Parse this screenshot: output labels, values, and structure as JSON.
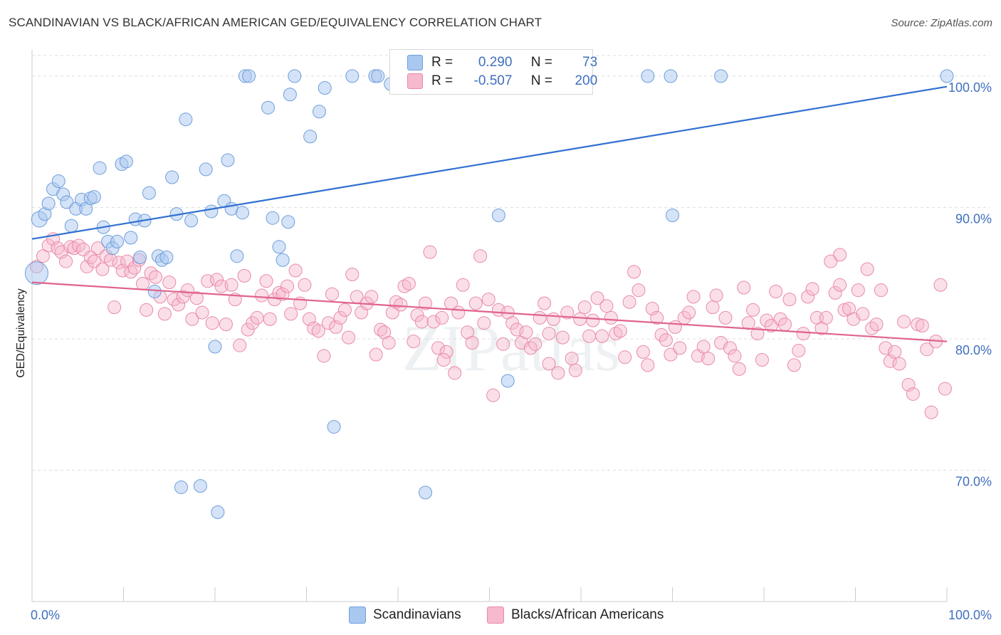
{
  "title": "SCANDINAVIAN VS BLACK/AFRICAN AMERICAN GED/EQUIVALENCY CORRELATION CHART",
  "source": "Source: ZipAtlas.com",
  "watermark": "ZIPatlas",
  "legend_top": {
    "rows": [
      {
        "r_label": "R =",
        "r_value": "0.290",
        "n_label": "N =",
        "n_value": "73"
      },
      {
        "r_label": "R =",
        "r_value": "-0.507",
        "n_label": "N =",
        "n_value": "200"
      }
    ]
  },
  "colors": {
    "blue_fill": "#a9c8f0",
    "blue_stroke": "#6f9edc",
    "blue_line": "#2f6fd0",
    "pink_fill": "#f7b9cc",
    "pink_stroke": "#e98aa8",
    "pink_line": "#e0638c",
    "grid": "#dddddd",
    "axis_text": "#3f6fbf"
  },
  "chart_data": {
    "type": "scatter",
    "title": "SCANDINAVIAN VS BLACK/AFRICAN AMERICAN GED/EQUIVALENCY CORRELATION CHART",
    "xlabel": "",
    "ylabel": "GED/Equivalency",
    "xlim": [
      0,
      100
    ],
    "ylim": [
      60,
      102
    ],
    "x_tick_labels": [
      "0.0%",
      "100.0%"
    ],
    "y_ticks": [
      {
        "value": 100,
        "label": "100.0%"
      },
      {
        "value": 90,
        "label": "90.0%"
      },
      {
        "value": 80,
        "label": "80.0%"
      },
      {
        "value": 70,
        "label": "70.0%"
      }
    ],
    "legend": [
      "Scandinavians",
      "Blacks/African Americans"
    ],
    "series": [
      {
        "name": "Scandinavians",
        "trend": {
          "x": [
            0,
            100
          ],
          "y": [
            87.6,
            99.2
          ]
        },
        "points": [
          [
            0.5,
            85.0
          ],
          [
            0.8,
            89.1
          ],
          [
            1.4,
            89.5
          ],
          [
            1.8,
            90.3
          ],
          [
            2.3,
            91.4
          ],
          [
            2.9,
            92.0
          ],
          [
            3.4,
            91.0
          ],
          [
            3.8,
            90.4
          ],
          [
            4.3,
            88.6
          ],
          [
            4.8,
            89.9
          ],
          [
            5.4,
            90.6
          ],
          [
            5.9,
            89.9
          ],
          [
            6.4,
            90.7
          ],
          [
            6.8,
            90.8
          ],
          [
            7.4,
            93.0
          ],
          [
            7.8,
            88.5
          ],
          [
            8.3,
            87.4
          ],
          [
            8.8,
            86.9
          ],
          [
            9.3,
            87.4
          ],
          [
            9.8,
            93.3
          ],
          [
            10.3,
            93.5
          ],
          [
            10.8,
            87.7
          ],
          [
            11.3,
            89.1
          ],
          [
            11.8,
            86.2
          ],
          [
            12.3,
            89.0
          ],
          [
            12.8,
            91.1
          ],
          [
            13.4,
            83.6
          ],
          [
            13.8,
            86.3
          ],
          [
            14.2,
            86.0
          ],
          [
            14.7,
            86.2
          ],
          [
            15.3,
            92.3
          ],
          [
            15.8,
            89.5
          ],
          [
            16.3,
            68.7
          ],
          [
            16.8,
            96.7
          ],
          [
            17.4,
            89.0
          ],
          [
            18.4,
            68.8
          ],
          [
            19.0,
            92.9
          ],
          [
            19.6,
            89.7
          ],
          [
            20.0,
            79.4
          ],
          [
            20.3,
            66.8
          ],
          [
            21.0,
            90.5
          ],
          [
            21.4,
            93.6
          ],
          [
            21.8,
            89.9
          ],
          [
            22.4,
            86.3
          ],
          [
            23.0,
            89.6
          ],
          [
            23.3,
            100.0
          ],
          [
            23.7,
            100.0
          ],
          [
            25.8,
            97.6
          ],
          [
            26.3,
            89.2
          ],
          [
            27.0,
            87.0
          ],
          [
            27.4,
            86.0
          ],
          [
            28.0,
            88.9
          ],
          [
            28.2,
            98.6
          ],
          [
            28.7,
            100.0
          ],
          [
            30.4,
            95.4
          ],
          [
            31.4,
            97.3
          ],
          [
            32.0,
            99.1
          ],
          [
            33.0,
            73.3
          ],
          [
            35.0,
            100.0
          ],
          [
            37.5,
            100.0
          ],
          [
            37.8,
            100.0
          ],
          [
            39.2,
            99.4
          ],
          [
            43.0,
            68.3
          ],
          [
            46.5,
            100.0
          ],
          [
            51.0,
            89.4
          ],
          [
            52.0,
            76.8
          ],
          [
            67.3,
            100.0
          ],
          [
            69.8,
            100.0
          ],
          [
            70.0,
            89.4
          ],
          [
            75.3,
            100.0
          ],
          [
            100.0,
            100.0
          ]
        ]
      },
      {
        "name": "Blacks/African Americans",
        "trend": {
          "x": [
            0,
            100
          ],
          "y": [
            84.3,
            79.8
          ]
        },
        "points": [
          [
            0.5,
            85.5
          ],
          [
            1.2,
            86.3
          ],
          [
            1.8,
            87.1
          ],
          [
            2.3,
            87.6
          ],
          [
            2.8,
            86.9
          ],
          [
            3.2,
            86.6
          ],
          [
            3.7,
            85.9
          ],
          [
            4.2,
            87.0
          ],
          [
            4.6,
            86.9
          ],
          [
            5.1,
            87.1
          ],
          [
            5.6,
            86.8
          ],
          [
            6.0,
            85.5
          ],
          [
            6.4,
            86.2
          ],
          [
            6.8,
            85.9
          ],
          [
            7.2,
            86.9
          ],
          [
            7.7,
            85.3
          ],
          [
            8.1,
            86.3
          ],
          [
            8.6,
            86.0
          ],
          [
            9.0,
            82.4
          ],
          [
            9.5,
            85.8
          ],
          [
            9.9,
            85.2
          ],
          [
            10.4,
            85.9
          ],
          [
            10.8,
            85.1
          ],
          [
            11.2,
            85.4
          ],
          [
            11.7,
            86.0
          ],
          [
            12.1,
            84.2
          ],
          [
            12.5,
            82.2
          ],
          [
            13.0,
            85.0
          ],
          [
            13.5,
            84.7
          ],
          [
            14.0,
            83.2
          ],
          [
            14.5,
            81.9
          ],
          [
            15.0,
            84.3
          ],
          [
            15.5,
            83.0
          ],
          [
            16.0,
            82.6
          ],
          [
            16.5,
            83.2
          ],
          [
            17.0,
            83.7
          ],
          [
            17.5,
            81.5
          ],
          [
            18.0,
            83.1
          ],
          [
            18.6,
            82.0
          ],
          [
            19.2,
            84.4
          ],
          [
            19.7,
            81.2
          ],
          [
            20.2,
            84.5
          ],
          [
            20.7,
            84.0
          ],
          [
            21.2,
            81.1
          ],
          [
            21.8,
            84.1
          ],
          [
            22.2,
            83.0
          ],
          [
            22.7,
            79.5
          ],
          [
            23.2,
            84.8
          ],
          [
            23.6,
            80.7
          ],
          [
            24.1,
            81.2
          ],
          [
            24.6,
            81.6
          ],
          [
            25.1,
            83.3
          ],
          [
            25.6,
            84.4
          ],
          [
            26.0,
            81.5
          ],
          [
            26.5,
            83.0
          ],
          [
            27.0,
            83.5
          ],
          [
            27.4,
            83.4
          ],
          [
            27.9,
            84.0
          ],
          [
            28.3,
            81.9
          ],
          [
            28.8,
            85.2
          ],
          [
            29.3,
            82.7
          ],
          [
            29.8,
            84.1
          ],
          [
            30.3,
            81.5
          ],
          [
            30.8,
            80.8
          ],
          [
            31.3,
            80.6
          ],
          [
            31.9,
            78.7
          ],
          [
            32.4,
            81.2
          ],
          [
            32.8,
            83.4
          ],
          [
            33.2,
            80.9
          ],
          [
            33.7,
            81.6
          ],
          [
            34.2,
            82.2
          ],
          [
            34.6,
            80.1
          ],
          [
            35.0,
            84.9
          ],
          [
            35.5,
            83.2
          ],
          [
            36.0,
            82.0
          ],
          [
            36.6,
            82.7
          ],
          [
            37.1,
            83.2
          ],
          [
            37.6,
            78.8
          ],
          [
            38.1,
            80.7
          ],
          [
            38.5,
            80.5
          ],
          [
            39.0,
            79.7
          ],
          [
            39.4,
            82.0
          ],
          [
            39.8,
            82.8
          ],
          [
            40.3,
            82.6
          ],
          [
            40.7,
            84.0
          ],
          [
            41.2,
            84.2
          ],
          [
            41.7,
            79.8
          ],
          [
            42.1,
            81.8
          ],
          [
            42.6,
            81.3
          ],
          [
            43.0,
            82.7
          ],
          [
            43.5,
            86.6
          ],
          [
            43.9,
            81.3
          ],
          [
            44.4,
            79.3
          ],
          [
            44.8,
            81.6
          ],
          [
            45.3,
            79.0
          ],
          [
            45.8,
            82.7
          ],
          [
            46.2,
            77.4
          ],
          [
            46.6,
            82.0
          ],
          [
            47.1,
            84.1
          ],
          [
            47.6,
            80.5
          ],
          [
            48.1,
            79.7
          ],
          [
            48.5,
            82.7
          ],
          [
            49.0,
            86.3
          ],
          [
            49.4,
            81.2
          ],
          [
            49.9,
            83.0
          ],
          [
            50.4,
            75.7
          ],
          [
            51.0,
            82.2
          ],
          [
            51.5,
            79.6
          ],
          [
            52.0,
            82.0
          ],
          [
            52.5,
            81.2
          ],
          [
            53.0,
            80.7
          ],
          [
            53.5,
            79.7
          ],
          [
            54.0,
            80.5
          ],
          [
            54.5,
            79.3
          ],
          [
            55.0,
            79.6
          ],
          [
            55.5,
            81.6
          ],
          [
            56.0,
            82.7
          ],
          [
            56.5,
            80.4
          ],
          [
            57.0,
            81.5
          ],
          [
            57.5,
            77.4
          ],
          [
            58.0,
            80.1
          ],
          [
            58.5,
            82.0
          ],
          [
            59.0,
            78.5
          ],
          [
            59.4,
            77.6
          ],
          [
            59.9,
            81.5
          ],
          [
            60.4,
            82.4
          ],
          [
            60.9,
            80.2
          ],
          [
            61.3,
            81.4
          ],
          [
            61.8,
            83.1
          ],
          [
            62.3,
            80.2
          ],
          [
            62.8,
            82.5
          ],
          [
            63.3,
            81.6
          ],
          [
            63.8,
            80.4
          ],
          [
            64.3,
            80.6
          ],
          [
            64.8,
            78.6
          ],
          [
            65.3,
            82.8
          ],
          [
            65.8,
            85.1
          ],
          [
            66.3,
            83.7
          ],
          [
            66.8,
            79.0
          ],
          [
            67.3,
            78.0
          ],
          [
            67.8,
            82.3
          ],
          [
            68.3,
            81.6
          ],
          [
            68.8,
            80.3
          ],
          [
            69.3,
            79.9
          ],
          [
            69.8,
            78.8
          ],
          [
            70.3,
            80.9
          ],
          [
            70.8,
            79.3
          ],
          [
            71.3,
            81.6
          ],
          [
            71.8,
            82.0
          ],
          [
            72.3,
            83.2
          ],
          [
            72.8,
            78.7
          ],
          [
            73.4,
            79.4
          ],
          [
            73.9,
            78.5
          ],
          [
            74.4,
            82.4
          ],
          [
            74.8,
            83.3
          ],
          [
            75.3,
            79.7
          ],
          [
            75.8,
            81.6
          ],
          [
            76.3,
            79.3
          ],
          [
            76.8,
            78.7
          ],
          [
            77.3,
            77.7
          ],
          [
            77.8,
            83.9
          ],
          [
            78.3,
            81.2
          ],
          [
            78.8,
            82.2
          ],
          [
            79.3,
            80.4
          ],
          [
            79.8,
            78.4
          ],
          [
            80.3,
            81.4
          ],
          [
            80.8,
            81.0
          ],
          [
            81.3,
            83.6
          ],
          [
            81.8,
            81.5
          ],
          [
            82.3,
            81.1
          ],
          [
            82.8,
            83.0
          ],
          [
            83.3,
            78.0
          ],
          [
            83.8,
            79.1
          ],
          [
            84.3,
            80.4
          ],
          [
            84.8,
            83.2
          ],
          [
            85.3,
            83.8
          ],
          [
            85.8,
            81.6
          ],
          [
            86.3,
            80.8
          ],
          [
            86.8,
            81.6
          ],
          [
            87.3,
            85.9
          ],
          [
            87.8,
            83.5
          ],
          [
            88.3,
            84.1
          ],
          [
            88.8,
            82.2
          ],
          [
            89.3,
            82.3
          ],
          [
            89.8,
            81.5
          ],
          [
            90.3,
            83.7
          ],
          [
            90.8,
            81.9
          ],
          [
            91.3,
            85.3
          ],
          [
            91.8,
            80.8
          ],
          [
            92.3,
            81.1
          ],
          [
            92.8,
            83.7
          ],
          [
            93.3,
            79.3
          ],
          [
            93.8,
            78.3
          ],
          [
            94.3,
            79.0
          ],
          [
            94.8,
            78.1
          ],
          [
            95.3,
            81.3
          ],
          [
            95.8,
            76.5
          ],
          [
            96.3,
            75.8
          ],
          [
            96.8,
            81.1
          ],
          [
            97.3,
            81.0
          ],
          [
            97.8,
            79.2
          ],
          [
            98.3,
            74.4
          ],
          [
            98.8,
            79.8
          ],
          [
            99.3,
            84.1
          ],
          [
            99.8,
            76.2
          ],
          [
            45.0,
            78.4
          ],
          [
            56.5,
            78.1
          ],
          [
            88.3,
            86.4
          ]
        ]
      }
    ]
  }
}
